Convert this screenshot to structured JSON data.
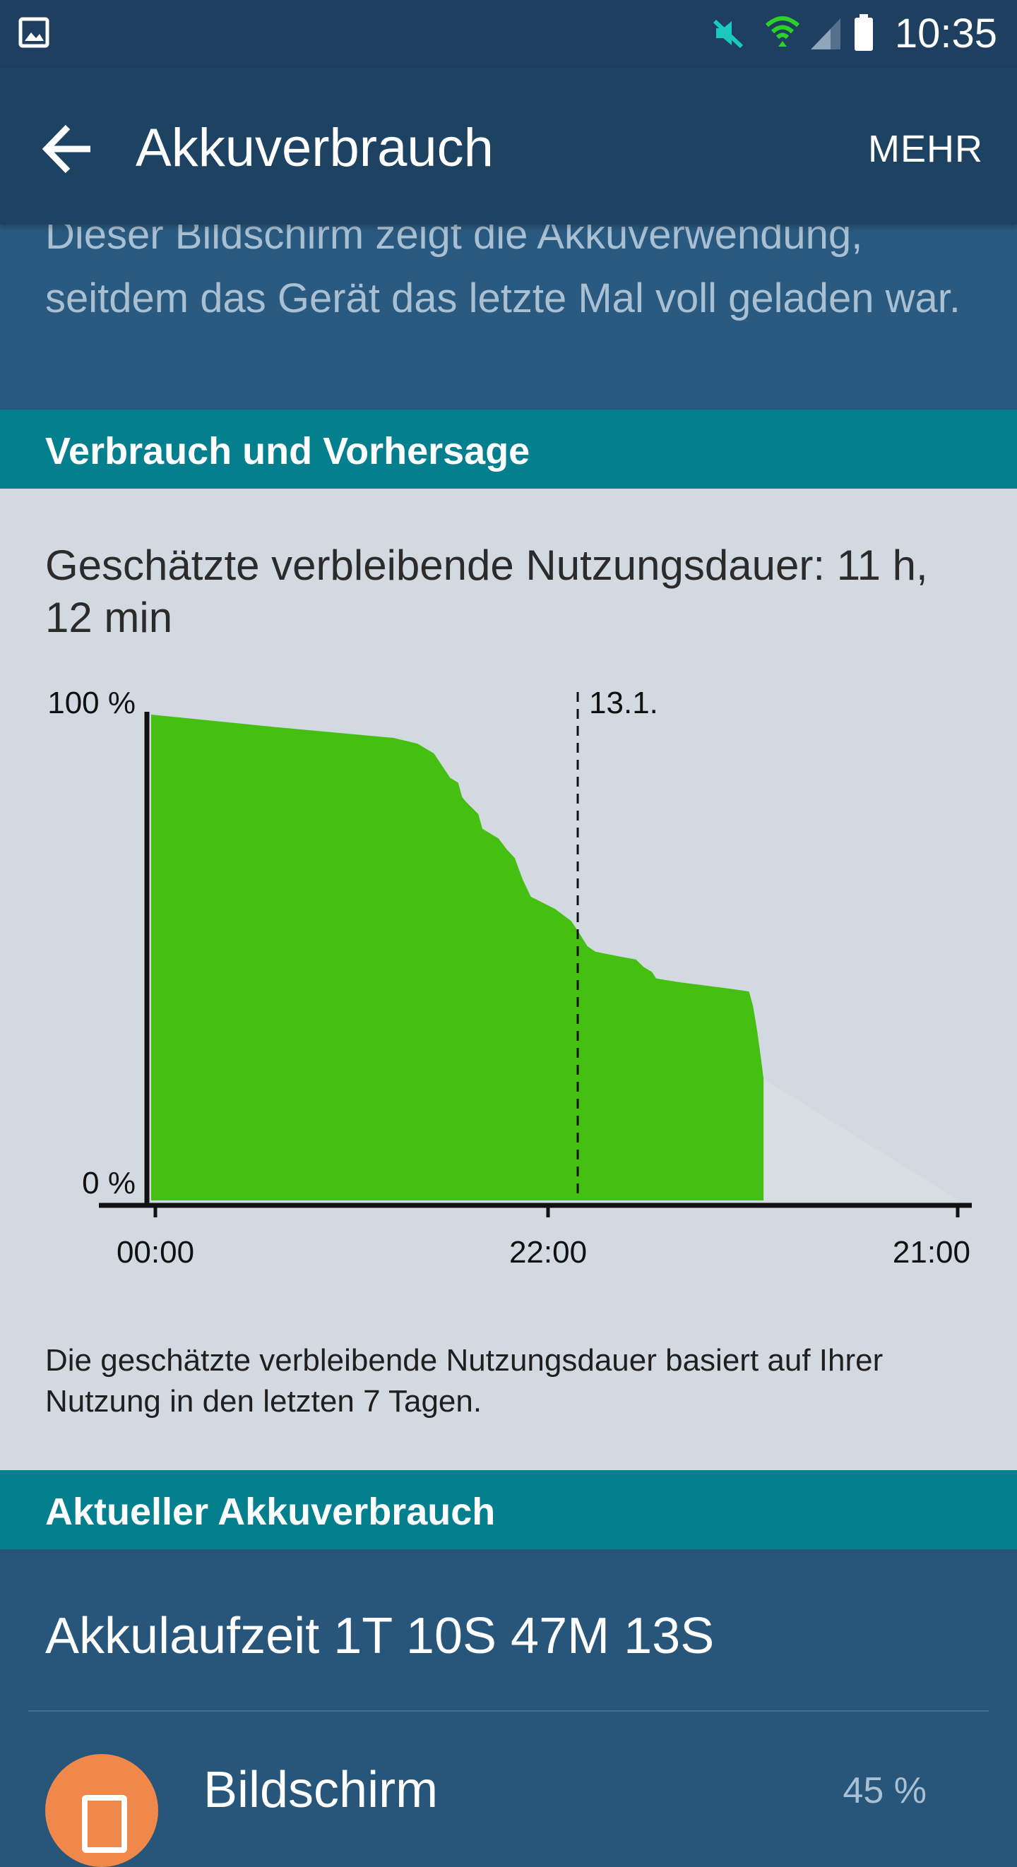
{
  "status_bar": {
    "time": "10:35",
    "icons": [
      "image-notification-icon",
      "mute-icon",
      "wifi-icon",
      "signal-icon",
      "battery-icon"
    ]
  },
  "app_bar": {
    "title": "Akkuverbrauch",
    "more_label": "MEHR"
  },
  "intro": {
    "text": "Dieser Bildschirm zeigt die Akkuverwendung, seitdem das Gerät das letzte Mal voll geladen war."
  },
  "usage_section": {
    "header": "Verbrauch und Vorhersage",
    "estimate": "Geschätzte verbleibende Nutzungsdauer: 11 h, 12 min",
    "footnote": "Die geschätzte verbleibende Nutzungsdauer basiert auf Ihrer Nutzung in den letzten 7 Tagen."
  },
  "chart_data": {
    "type": "area",
    "y_labels": [
      "100 %",
      "0 %"
    ],
    "x_labels": [
      "00:00",
      "22:00",
      "21:00"
    ],
    "marker_label": "13.1.",
    "ylim": [
      0,
      100
    ],
    "marker_at": 0.528,
    "series": [
      {
        "values": [
          [
            0.0,
            100
          ],
          [
            0.15,
            97.5
          ],
          [
            0.3,
            95.2
          ],
          [
            0.33,
            94
          ],
          [
            0.35,
            92
          ],
          [
            0.36,
            89.5
          ],
          [
            0.37,
            87
          ],
          [
            0.38,
            86
          ],
          [
            0.385,
            83
          ],
          [
            0.39,
            82
          ],
          [
            0.405,
            79.5
          ],
          [
            0.41,
            76.5
          ],
          [
            0.43,
            74.5
          ],
          [
            0.44,
            72.3
          ],
          [
            0.45,
            70.5
          ],
          [
            0.46,
            66
          ],
          [
            0.47,
            62.5
          ],
          [
            0.5,
            60
          ],
          [
            0.52,
            57.5
          ],
          [
            0.53,
            55
          ],
          [
            0.54,
            52.3
          ],
          [
            0.55,
            51.2
          ],
          [
            0.58,
            50.2
          ],
          [
            0.6,
            49.6
          ],
          [
            0.61,
            48
          ],
          [
            0.62,
            47
          ],
          [
            0.625,
            45.7
          ],
          [
            0.65,
            45
          ],
          [
            0.72,
            43.5
          ],
          [
            0.74,
            43
          ],
          [
            0.745,
            40
          ],
          [
            0.75,
            35
          ],
          [
            0.755,
            29
          ],
          [
            0.758,
            25
          ],
          [
            0.758,
            0
          ]
        ]
      }
    ],
    "forecast": [
      [
        0.758,
        25
      ],
      [
        1.0,
        0
      ]
    ],
    "colors": {
      "usage": "#45c012",
      "forecast": "#d8dee2",
      "axis": "#111111"
    }
  },
  "current_section": {
    "header": "Aktueller Akkuverbrauch",
    "runtime": "Akkulaufzeit 1T 10S 47M 13S",
    "apps": [
      {
        "name": "Bildschirm",
        "percent": "45 %",
        "icon": "screen-icon",
        "color": "#f0884c"
      }
    ]
  }
}
